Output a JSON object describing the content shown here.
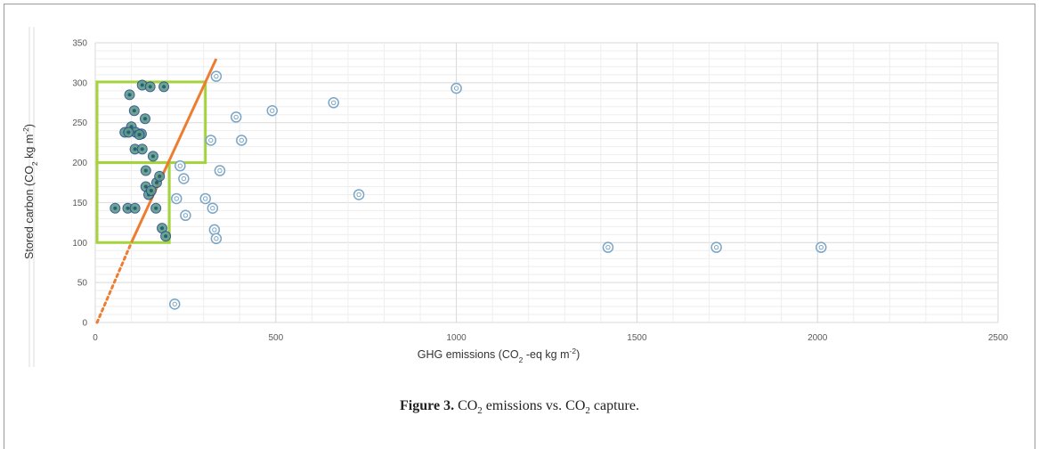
{
  "caption": {
    "label": "Figure 3.",
    "text_parts": [
      "CO",
      "2",
      " emissions vs. CO",
      "2",
      " capture."
    ]
  },
  "chart_data": {
    "type": "scatter",
    "xlabel_parts": [
      "GHG emissions (CO",
      "2",
      " -eq kg m",
      "-2",
      ")"
    ],
    "ylabel_parts": [
      "Stored carbon (CO",
      "2",
      "  kg m",
      "-2",
      ")"
    ],
    "xlim": [
      0,
      2500
    ],
    "ylim": [
      0,
      350
    ],
    "xticks": [
      0,
      500,
      1000,
      1500,
      2000,
      2500
    ],
    "yticks": [
      0,
      50,
      100,
      150,
      200,
      250,
      300,
      350
    ],
    "grid": true,
    "series": [
      {
        "style": "filled",
        "points": [
          [
            95,
            285
          ],
          [
            108,
            265
          ],
          [
            130,
            297
          ],
          [
            152,
            295
          ],
          [
            190,
            295
          ],
          [
            138,
            255
          ],
          [
            82,
            238
          ],
          [
            100,
            245
          ],
          [
            112,
            238
          ],
          [
            92,
            238
          ],
          [
            128,
            236
          ],
          [
            122,
            235
          ],
          [
            110,
            217
          ],
          [
            130,
            217
          ],
          [
            160,
            208
          ],
          [
            140,
            190
          ],
          [
            140,
            170
          ],
          [
            148,
            160
          ],
          [
            155,
            165
          ],
          [
            170,
            175
          ],
          [
            178,
            183
          ],
          [
            168,
            143
          ],
          [
            55,
            143
          ],
          [
            90,
            143
          ],
          [
            110,
            143
          ],
          [
            185,
            118
          ],
          [
            195,
            108
          ]
        ]
      },
      {
        "style": "hollow",
        "points": [
          [
            335,
            308
          ],
          [
            1000,
            293
          ],
          [
            660,
            275
          ],
          [
            490,
            265
          ],
          [
            390,
            257
          ],
          [
            320,
            228
          ],
          [
            405,
            228
          ],
          [
            235,
            196
          ],
          [
            345,
            190
          ],
          [
            245,
            180
          ],
          [
            730,
            160
          ],
          [
            225,
            155
          ],
          [
            305,
            155
          ],
          [
            325,
            143
          ],
          [
            250,
            134
          ],
          [
            330,
            116
          ],
          [
            335,
            105
          ],
          [
            1420,
            94
          ],
          [
            1720,
            94
          ],
          [
            2010,
            94
          ],
          [
            220,
            23
          ]
        ]
      }
    ],
    "trendline": {
      "solid": [
        [
          100,
          100
        ],
        [
          335,
          330
        ]
      ],
      "dotted": [
        [
          5,
          0
        ],
        [
          100,
          100
        ]
      ]
    },
    "boxes": [
      {
        "x0": 5,
        "x1": 305,
        "y0": 200,
        "y1": 301
      },
      {
        "x0": 5,
        "x1": 205,
        "y0": 100,
        "y1": 200
      }
    ],
    "colors": {
      "filled_fill": "#5c9c8a",
      "filled_stroke": "#2f4f8a",
      "hollow_stroke": "#7aa5c6",
      "trendline": "#ed7d31",
      "box": "#a5d33c",
      "grid": "#d9d9d9"
    }
  }
}
